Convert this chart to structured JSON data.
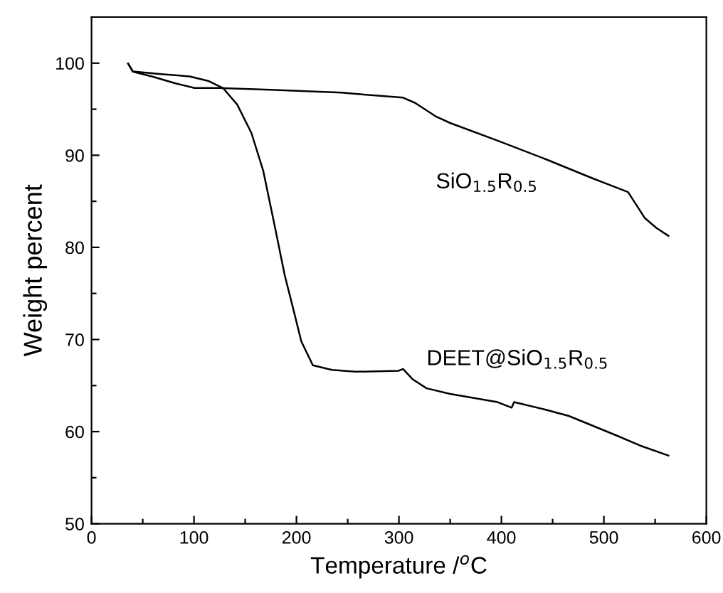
{
  "chart_data": {
    "type": "line",
    "xlabel": "Temperature /$^{o}$C",
    "ylabel": "Weight percent",
    "xlim": [
      0,
      600
    ],
    "ylim": [
      50,
      105
    ],
    "xticks": [
      0,
      {
        "value": 50,
        "label": null
      },
      100,
      {
        "value": 150,
        "label": null
      },
      200,
      {
        "value": 250,
        "label": null
      },
      300,
      {
        "value": 350,
        "label": null
      },
      400,
      {
        "value": 450,
        "label": null
      },
      500,
      {
        "value": 550,
        "label": null
      },
      600
    ],
    "yticks": [
      50,
      {
        "value": 55,
        "label": null
      },
      60,
      {
        "value": 65,
        "label": null
      },
      70,
      {
        "value": 75,
        "label": null
      },
      80,
      {
        "value": 85,
        "label": null
      },
      90,
      {
        "value": 95,
        "label": null
      },
      100
    ],
    "grid": false,
    "legend": false,
    "marker": "none",
    "line_style": "solid",
    "series": [
      {
        "name": "SiO$_{1.5}$R$_{0.5}$",
        "color": "#000000",
        "x": [
          35.7,
          40.3,
          58.9,
          82,
          100.5,
          123.6,
          174.6,
          244,
          257.9,
          304,
          315.5,
          336.3,
          350,
          396,
          442.6,
          488.9,
          523.6,
          539.8,
          551.4,
          563
        ],
        "values": [
          99.95,
          99.08,
          98.56,
          97.8,
          97.3,
          97.3,
          97.1,
          96.8,
          96.66,
          96.25,
          95.7,
          94.2,
          93.5,
          91.6,
          89.6,
          87.5,
          86.0,
          83.2,
          82.1,
          81.25
        ]
      },
      {
        "name": "DEET@SiO$_{1.5}$R$_{0.5}$",
        "color": "#000000",
        "x": [
          35.7,
          40.3,
          68,
          95.8,
          114.4,
          128.3,
          142.2,
          156.1,
          167.6,
          179.2,
          188.5,
          197.8,
          204.7,
          216,
          234.7,
          257.9,
          299.6,
          304,
          313.2,
          327,
          350,
          396.3,
          410,
          412.4,
          442.6,
          465.8,
          512,
          535,
          563
        ],
        "values": [
          99.95,
          99.1,
          98.8,
          98.56,
          98.05,
          97.3,
          95.5,
          92.4,
          88.3,
          82.1,
          77.0,
          72.9,
          69.8,
          67.2,
          66.7,
          66.5,
          66.6,
          66.8,
          65.7,
          64.7,
          64.1,
          63.2,
          62.6,
          63.2,
          62.4,
          61.7,
          59.6,
          58.5,
          57.4
        ]
      }
    ]
  }
}
